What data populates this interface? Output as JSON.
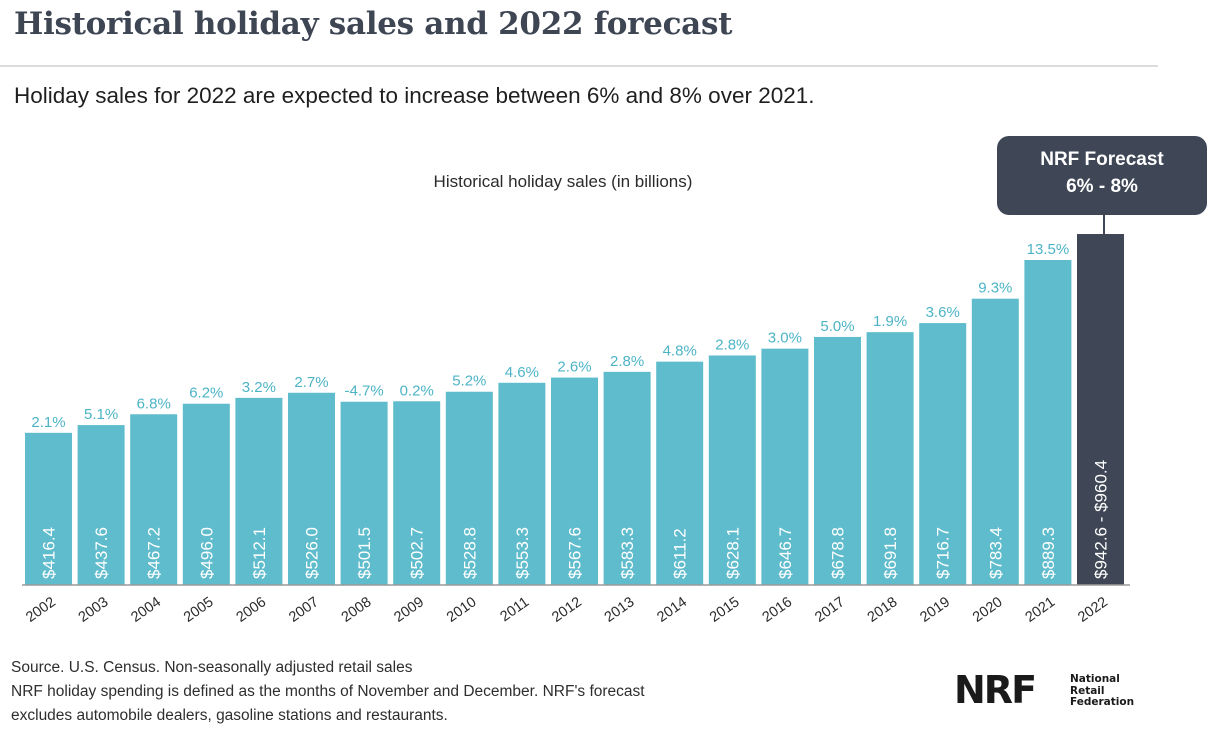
{
  "header": {
    "title": "Historical holiday sales and 2022 forecast",
    "subtitle": "Holiday sales for 2022 are expected to increase between 6% and 8% over 2021."
  },
  "forecast_callout": {
    "line1": "NRF Forecast",
    "line2": "6% - 8%"
  },
  "footer": {
    "source": "Source. U.S. Census. Non-seasonally adjusted retail sales",
    "note_line1": "NRF holiday spending is defined as the months of November and December. NRF's forecast",
    "note_line2": "excludes automobile dealers, gasoline stations and restaurants."
  },
  "logo": {
    "mark": "NRF",
    "line1": "National",
    "line2": "Retail",
    "line3": "Federation"
  },
  "colors": {
    "historical_bar": "#5fbccc",
    "forecast_bar": "#3f4756",
    "growth_label": "#4db4c6",
    "title": "#3e4553"
  },
  "chart_data": {
    "type": "bar",
    "title": "Historical holiday sales (in billions)",
    "xlabel": "",
    "ylabel": "",
    "ylim": [
      0,
      1000
    ],
    "grid": false,
    "categories": [
      "2002",
      "2003",
      "2004",
      "2005",
      "2006",
      "2007",
      "2008",
      "2009",
      "2010",
      "2011",
      "2012",
      "2013",
      "2014",
      "2015",
      "2016",
      "2017",
      "2018",
      "2019",
      "2020",
      "2021",
      "2022"
    ],
    "series": [
      {
        "name": "",
        "values": [
          416.4,
          437.6,
          467.2,
          496.0,
          512.1,
          526.0,
          501.5,
          502.7,
          528.8,
          553.3,
          567.6,
          583.3,
          611.2,
          628.1,
          646.7,
          678.8,
          691.8,
          716.7,
          783.4,
          889.3,
          960.4
        ],
        "value_labels": [
          "$416.4",
          "$437.6",
          "$467.2",
          "$496.0",
          "$512.1",
          "$526.0",
          "$501.5",
          "$502.7",
          "$528.8",
          "$553.3",
          "$567.6",
          "$583.3",
          "$611.2",
          "$628.1",
          "$646.7",
          "$678.8",
          "$691.8",
          "$716.7",
          "$783.4",
          "$889.3",
          "$942.6 - $960.4"
        ],
        "growth_labels": [
          "2.1%",
          "5.1%",
          "6.8%",
          "6.2%",
          "3.2%",
          "2.7%",
          "-4.7%",
          "0.2%",
          "5.2%",
          "4.6%",
          "2.6%",
          "2.8%",
          "4.8%",
          "2.8%",
          "3.0%",
          "5.0%",
          "1.9%",
          "3.6%",
          "9.3%",
          "13.5%",
          ""
        ]
      }
    ],
    "forecast": {
      "category": "2022",
      "low": 942.6,
      "high": 960.4
    }
  }
}
